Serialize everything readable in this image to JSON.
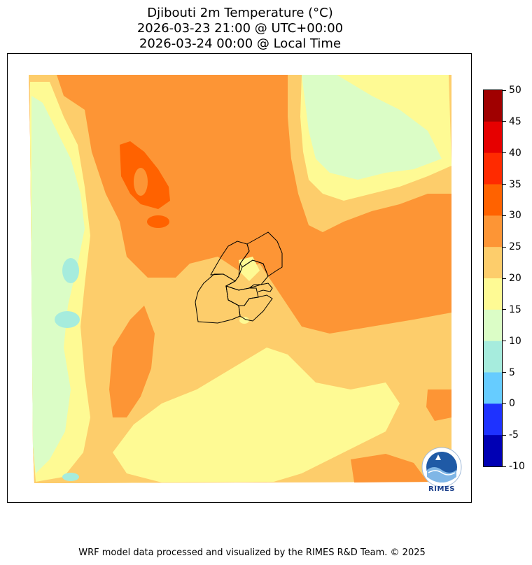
{
  "title": {
    "line1": "Djibouti 2m Temperature (°C)",
    "line2": "2026-03-23 21:00 @ UTC+00:00",
    "line3": "2026-03-24 00:00 @ Local Time"
  },
  "colorbar": {
    "ticks": [
      "50",
      "45",
      "40",
      "35",
      "30",
      "25",
      "20",
      "15",
      "10",
      "5",
      "0",
      "-5",
      "-10"
    ],
    "bands": [
      {
        "from": 45,
        "to": 50,
        "color": "#a00000"
      },
      {
        "from": 40,
        "to": 45,
        "color": "#e60000"
      },
      {
        "from": 35,
        "to": 40,
        "color": "#ff2a00"
      },
      {
        "from": 30,
        "to": 35,
        "color": "#ff6200"
      },
      {
        "from": 25,
        "to": 30,
        "color": "#fd9535"
      },
      {
        "from": 20,
        "to": 25,
        "color": "#fdcd6b"
      },
      {
        "from": 15,
        "to": 20,
        "color": "#fefa94"
      },
      {
        "from": 10,
        "to": 15,
        "color": "#dbfdc6"
      },
      {
        "from": 5,
        "to": 10,
        "color": "#a6ecdd"
      },
      {
        "from": 0,
        "to": 5,
        "color": "#66ccff"
      },
      {
        "from": -5,
        "to": 0,
        "color": "#1e32ff"
      },
      {
        "from": -10,
        "to": -5,
        "color": "#0000b4"
      }
    ],
    "min": -10,
    "max": 50
  },
  "logo": {
    "text": "RIMES"
  },
  "footer": "WRF model data processed and visualized by the RIMES R&D Team. © 2025"
}
